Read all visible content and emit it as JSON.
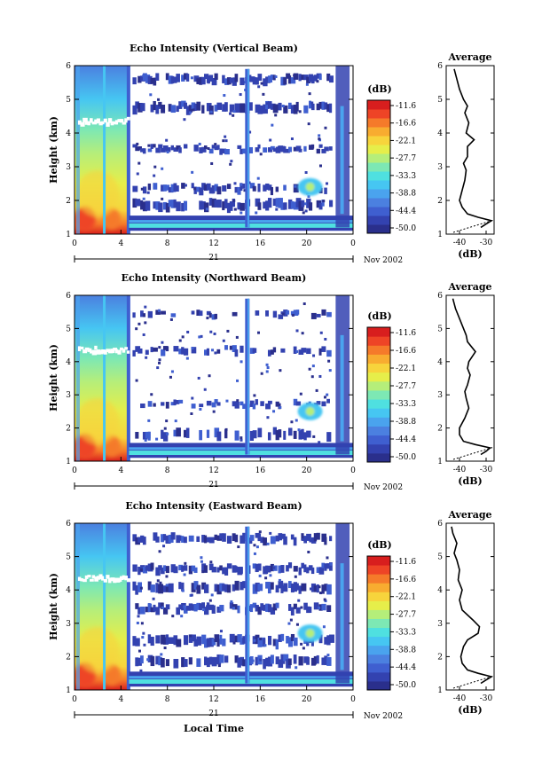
{
  "figure": {
    "date_label": "Nov 2002",
    "xlabel_bottom": "Local Time",
    "ylabel": "Height (km)",
    "colorbar_title": "(dB)",
    "colorbar_ticks": [
      "-11.6",
      "-16.6",
      "-22.1",
      "-27.7",
      "-33.3",
      "-38.8",
      "-44.4",
      "-50.0"
    ],
    "day_label": "21",
    "avg_title": "Average",
    "avg_xlabel": "(dB)"
  },
  "colors": {
    "palette": [
      "#2a2f8c",
      "#3342b0",
      "#3f5fd0",
      "#4b80e0",
      "#4aa3ee",
      "#46c6f2",
      "#4fe0e0",
      "#7de8b4",
      "#b5ee7a",
      "#e6ee4a",
      "#f7d43c",
      "#f8ac30",
      "#f57a2a",
      "#ee4426",
      "#d81e1e"
    ]
  },
  "chart_data": [
    {
      "type": "heatmap",
      "title": "Echo Intensity (Vertical Beam)",
      "xlabel": "",
      "ylabel": "Height (km)",
      "x_ticks": [
        "0",
        "4",
        "8",
        "12",
        "16",
        "20",
        "0"
      ],
      "y_ticks": [
        "1",
        "2",
        "3",
        "4",
        "5",
        "6"
      ],
      "xlim": [
        0,
        24
      ],
      "ylim": [
        1,
        6
      ],
      "colorbar": {
        "unit": "dB",
        "range": [
          -50.0,
          -11.6
        ]
      },
      "profile": {
        "title": "Average",
        "xlabel": "(dB)",
        "x_ticks": [
          "-40",
          "-30"
        ],
        "y_ticks": [
          "1",
          "2",
          "3",
          "4",
          "5",
          "6"
        ],
        "xlim": [
          -45,
          -27
        ],
        "heights": [
          1.2,
          1.3,
          1.4,
          1.5,
          1.6,
          1.8,
          2.0,
          2.3,
          2.6,
          2.9,
          3.1,
          3.3,
          3.6,
          3.8,
          4.0,
          4.3,
          4.6,
          4.8,
          5.0,
          5.3,
          5.6,
          5.9
        ],
        "values": [
          -32.0,
          -30.0,
          -28.0,
          -33.0,
          -37.0,
          -39.0,
          -40.0,
          -39.0,
          -38.0,
          -37.5,
          -38.5,
          -37.0,
          -37.0,
          -34.5,
          -37.5,
          -36.5,
          -38.0,
          -37.0,
          -38.5,
          -40.0,
          -41.0,
          -42.0
        ]
      }
    },
    {
      "type": "heatmap",
      "title": "Echo Intensity (Northward Beam)",
      "xlabel": "",
      "ylabel": "Height (km)",
      "x_ticks": [
        "0",
        "4",
        "8",
        "12",
        "16",
        "20",
        "0"
      ],
      "y_ticks": [
        "1",
        "2",
        "3",
        "4",
        "5",
        "6"
      ],
      "xlim": [
        0,
        24
      ],
      "ylim": [
        1,
        6
      ],
      "colorbar": {
        "unit": "dB",
        "range": [
          -50.0,
          -11.6
        ]
      },
      "profile": {
        "title": "Average",
        "xlabel": "(dB)",
        "x_ticks": [
          "-40",
          "-30"
        ],
        "y_ticks": [
          "1",
          "2",
          "3",
          "4",
          "5",
          "6"
        ],
        "xlim": [
          -45,
          -27
        ],
        "heights": [
          1.2,
          1.3,
          1.4,
          1.5,
          1.6,
          1.8,
          2.0,
          2.3,
          2.6,
          2.9,
          3.1,
          3.3,
          3.6,
          3.8,
          4.0,
          4.3,
          4.6,
          4.8,
          5.0,
          5.3,
          5.6,
          5.9
        ],
        "values": [
          -32.0,
          -30.0,
          -28.5,
          -34.0,
          -38.5,
          -40.0,
          -40.0,
          -38.0,
          -36.5,
          -37.5,
          -38.0,
          -37.0,
          -36.0,
          -37.0,
          -36.5,
          -34.0,
          -37.0,
          -37.5,
          -38.5,
          -40.0,
          -41.5,
          -42.5
        ]
      }
    },
    {
      "type": "heatmap",
      "title": "Echo Intensity (Eastward Beam)",
      "xlabel": "Local Time",
      "ylabel": "Height (km)",
      "x_ticks": [
        "0",
        "4",
        "8",
        "12",
        "16",
        "20",
        "0"
      ],
      "y_ticks": [
        "1",
        "2",
        "3",
        "4",
        "5",
        "6"
      ],
      "xlim": [
        0,
        24
      ],
      "ylim": [
        1,
        6
      ],
      "colorbar": {
        "unit": "dB",
        "range": [
          -50.0,
          -11.6
        ]
      },
      "profile": {
        "title": "Average",
        "xlabel": "(dB)",
        "x_ticks": [
          "-40",
          "-30"
        ],
        "y_ticks": [
          "1",
          "2",
          "3",
          "4",
          "5",
          "6"
        ],
        "xlim": [
          -45,
          -27
        ],
        "heights": [
          1.2,
          1.3,
          1.4,
          1.5,
          1.6,
          1.8,
          2.0,
          2.3,
          2.5,
          2.7,
          2.9,
          3.1,
          3.4,
          3.7,
          4.0,
          4.3,
          4.6,
          4.9,
          5.1,
          5.4,
          5.7,
          5.9
        ],
        "values": [
          -32.0,
          -30.0,
          -28.0,
          -33.0,
          -37.0,
          -39.0,
          -39.5,
          -38.5,
          -37.0,
          -33.0,
          -32.5,
          -35.0,
          -39.0,
          -40.0,
          -39.0,
          -40.5,
          -40.0,
          -41.0,
          -42.0,
          -41.0,
          -42.5,
          -43.0
        ]
      }
    }
  ]
}
